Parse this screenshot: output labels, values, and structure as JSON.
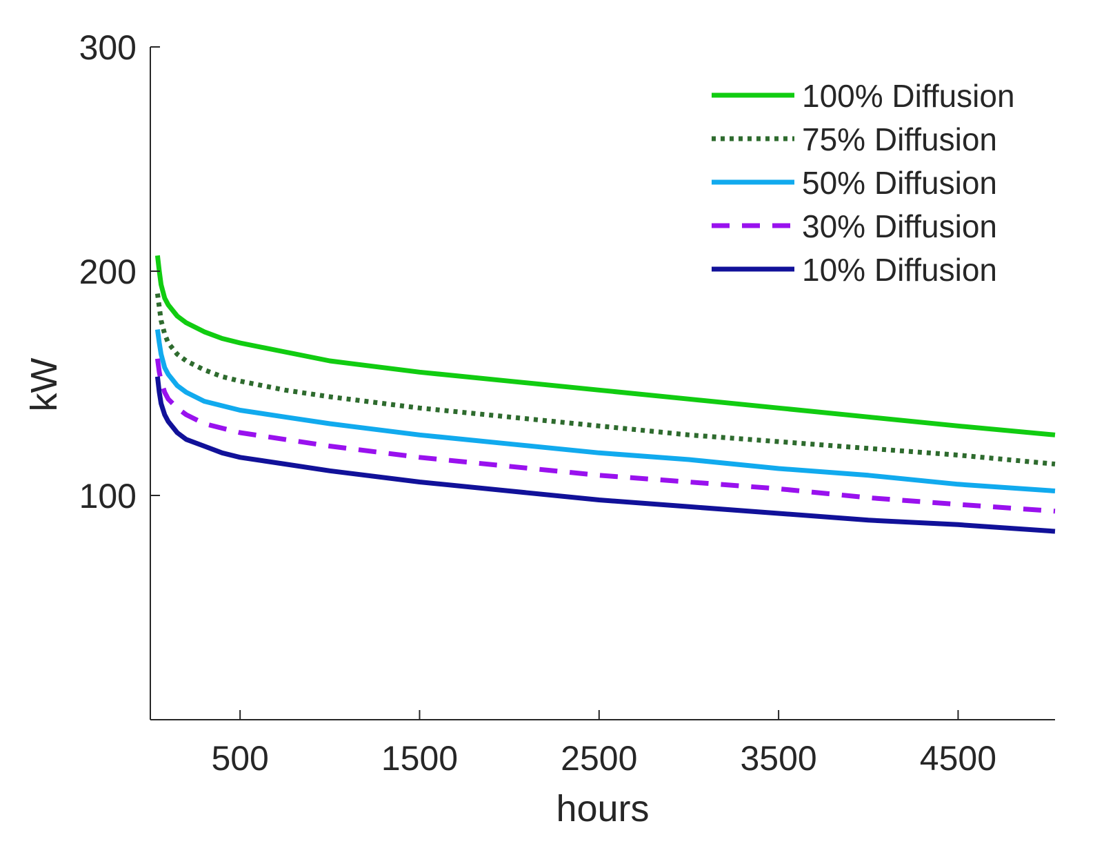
{
  "chart_data": {
    "type": "line",
    "title": "",
    "xlabel": "hours",
    "ylabel": "kW",
    "xlim": [
      0,
      5040
    ],
    "ylim": [
      0,
      300
    ],
    "xticks": [
      500,
      1500,
      2500,
      3500,
      4500
    ],
    "yticks": [
      100,
      200,
      300
    ],
    "xtick_labels": [
      "500",
      "1500",
      "2500",
      "3500",
      "4500"
    ],
    "ytick_labels": [
      "100",
      "200",
      "300"
    ],
    "grid": false,
    "legend_position": "top-right",
    "x": [
      40,
      50,
      60,
      80,
      100,
      150,
      200,
      300,
      400,
      500,
      750,
      1000,
      1500,
      2000,
      2500,
      3000,
      3500,
      4000,
      4500,
      5040
    ],
    "series": [
      {
        "name": "100% Diffusion",
        "color": "#11cc11",
        "style": "solid",
        "values": [
          207,
          200,
          194,
          188,
          185,
          180,
          177,
          173,
          170,
          168,
          164,
          160,
          155,
          151,
          147,
          143,
          139,
          135,
          131,
          127
        ]
      },
      {
        "name": "75% Diffusion",
        "color": "#2e6b2e",
        "style": "dotted",
        "values": [
          190,
          184,
          178,
          172,
          168,
          163,
          160,
          156,
          153,
          151,
          147,
          144,
          139,
          135,
          131,
          127,
          124,
          121,
          118,
          114
        ]
      },
      {
        "name": "50% Diffusion",
        "color": "#11aaee",
        "style": "solid",
        "values": [
          174,
          168,
          163,
          157,
          154,
          149,
          146,
          142,
          140,
          138,
          135,
          132,
          127,
          123,
          119,
          116,
          112,
          109,
          105,
          102
        ]
      },
      {
        "name": "30% Diffusion",
        "color": "#9911ee",
        "style": "dashed",
        "values": [
          161,
          155,
          151,
          146,
          143,
          139,
          136,
          132,
          130,
          128,
          125,
          122,
          117,
          113,
          109,
          106,
          103,
          99,
          96,
          93
        ]
      },
      {
        "name": "10% Diffusion",
        "color": "#111199",
        "style": "solid",
        "values": [
          153,
          146,
          141,
          136,
          133,
          128,
          125,
          122,
          119,
          117,
          114,
          111,
          106,
          102,
          98,
          95,
          92,
          89,
          87,
          84
        ]
      }
    ]
  }
}
